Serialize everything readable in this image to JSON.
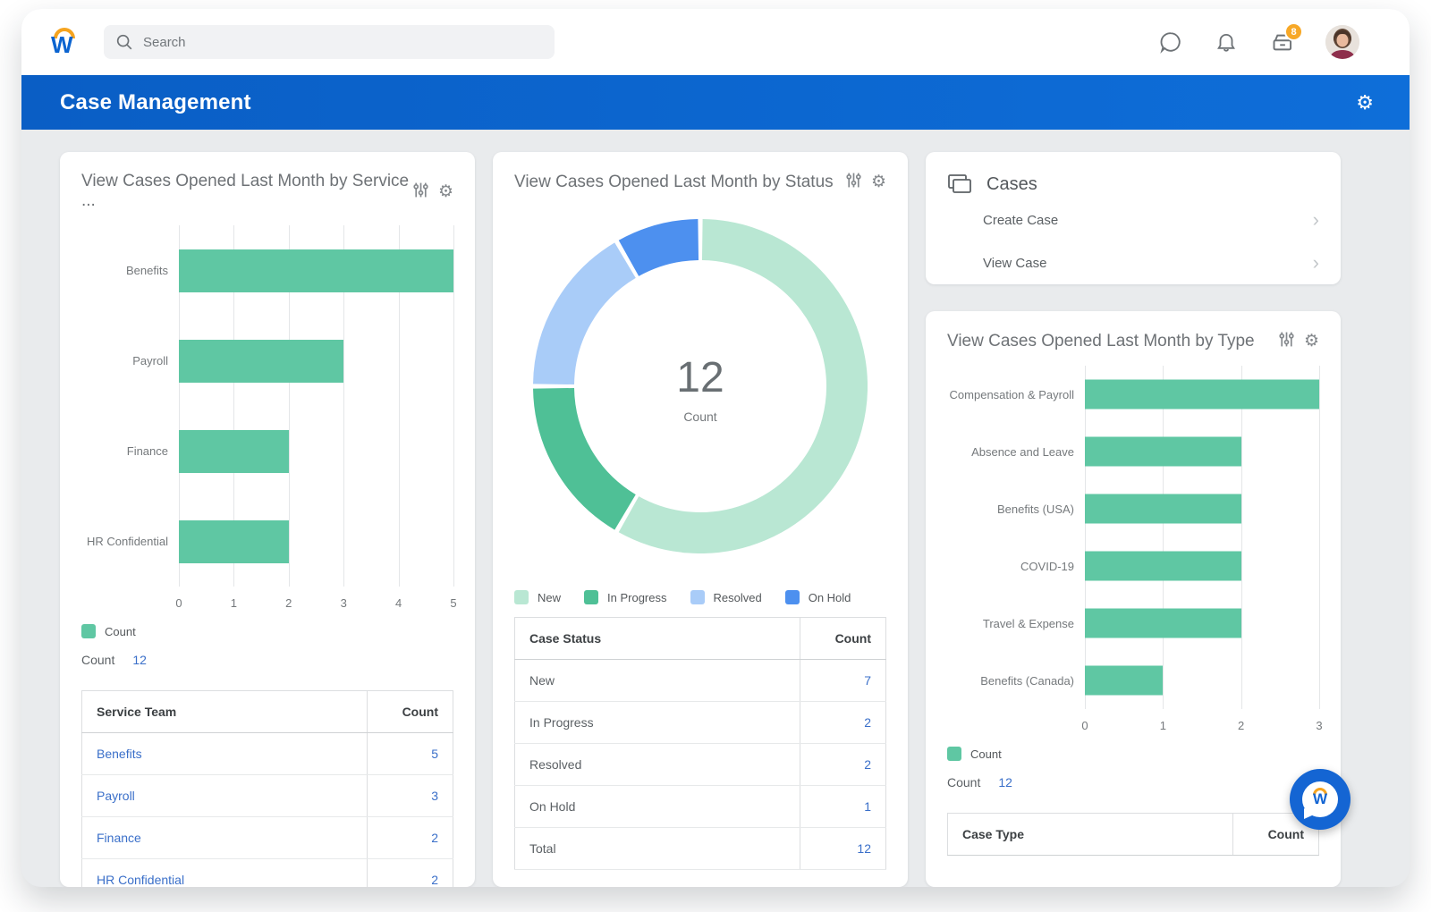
{
  "topbar": {
    "search_placeholder": "Search",
    "inbox_badge": "8"
  },
  "header": {
    "title": "Case Management"
  },
  "colors": {
    "bar_teal": "#5fc7a3",
    "link_blue": "#3a6fc9",
    "banner_blue": "#0b64cd",
    "badge_orange": "#f7a827",
    "donut": [
      "#b9e7d3",
      "#4fc096",
      "#a9ccf8",
      "#4d90ef"
    ]
  },
  "cards": {
    "service": {
      "title": "View Cases Opened Last Month by Service ...",
      "legend_label": "Count",
      "count_label": "Count",
      "count_value": "12",
      "table": {
        "headers": [
          "Service Team",
          "Count"
        ],
        "rows": [
          [
            "Benefits",
            "5"
          ],
          [
            "Payroll",
            "3"
          ],
          [
            "Finance",
            "2"
          ],
          [
            "HR Confidential",
            "2"
          ]
        ]
      }
    },
    "status": {
      "title": "View Cases Opened Last Month by Status",
      "center_value": "12",
      "center_label": "Count",
      "table": {
        "headers": [
          "Case Status",
          "Count"
        ],
        "rows": [
          [
            "New",
            "7"
          ],
          [
            "In Progress",
            "2"
          ],
          [
            "Resolved",
            "2"
          ],
          [
            "On Hold",
            "1"
          ],
          [
            "Total",
            "12"
          ]
        ]
      }
    },
    "cases": {
      "title": "Cases",
      "items": [
        {
          "label": "Create Case"
        },
        {
          "label": "View Case"
        }
      ]
    },
    "type": {
      "title": "View Cases Opened Last Month by Type",
      "legend_label": "Count",
      "count_label": "Count",
      "count_value": "12",
      "table": {
        "headers": [
          "Case Type",
          "Count"
        ],
        "rows": []
      }
    }
  },
  "chart_data": [
    {
      "type": "bar",
      "orientation": "horizontal",
      "title": "View Cases Opened Last Month by Service ...",
      "categories": [
        "Benefits",
        "Payroll",
        "Finance",
        "HR Confidential"
      ],
      "values": [
        5,
        3,
        2,
        2
      ],
      "xlim": [
        0,
        5
      ],
      "xticks": [
        0,
        1,
        2,
        3,
        4,
        5
      ],
      "bar_color": "#5fc7a3",
      "legend": [
        "Count"
      ],
      "grid": true,
      "total": 12
    },
    {
      "type": "pie",
      "subtype": "donut",
      "title": "View Cases Opened Last Month by Status",
      "categories": [
        "New",
        "In Progress",
        "Resolved",
        "On Hold"
      ],
      "values": [
        7,
        2,
        2,
        1
      ],
      "colors": [
        "#b9e7d3",
        "#4fc096",
        "#a9ccf8",
        "#4d90ef"
      ],
      "center_value": 12,
      "center_label": "Count",
      "legend_position": "bottom",
      "total": 12
    },
    {
      "type": "bar",
      "orientation": "horizontal",
      "title": "View Cases Opened Last Month by Type",
      "categories": [
        "Compensation & Payroll",
        "Absence and Leave",
        "Benefits (USA)",
        "COVID-19",
        "Travel & Expense",
        "Benefits (Canada)"
      ],
      "values": [
        3,
        2,
        2,
        2,
        2,
        1
      ],
      "xlim": [
        0,
        3
      ],
      "xticks": [
        0,
        1,
        2,
        3
      ],
      "bar_color": "#5fc7a3",
      "legend": [
        "Count"
      ],
      "grid": true,
      "total": 12
    }
  ]
}
